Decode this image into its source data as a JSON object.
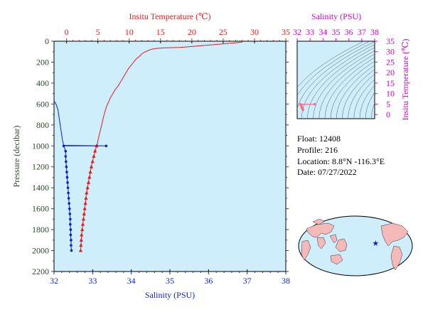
{
  "colors": {
    "temperature": "#e8191c",
    "salinity": "#0c1fd0",
    "ts_axis": "#d000d0",
    "plot_bg": "#cdeefa",
    "axis_left": "#2a4a2a",
    "land": "#f6b9b9"
  },
  "chart_data": [
    {
      "type": "line",
      "top_axis_label": "Insitu Temperature (℃)",
      "bottom_axis_label": "Salinity (PSU)",
      "left_axis_label": "Pressure (decibar)",
      "temp_ticks": [
        "0",
        "5",
        "10",
        "15",
        "20",
        "25",
        "30",
        "35"
      ],
      "sal_ticks": [
        "32",
        "33",
        "34",
        "35",
        "36",
        "37",
        "38"
      ],
      "pressure_ticks": [
        "0",
        "200",
        "400",
        "600",
        "800",
        "1000",
        "1200",
        "1400",
        "1600",
        "1800",
        "2000",
        "2200"
      ],
      "temp_range": [
        -2,
        35
      ],
      "salinity_range": [
        32,
        38
      ],
      "pressure_range": [
        0,
        2200
      ],
      "temperature_profile": {
        "pressure": [
          5,
          8,
          10,
          12,
          15,
          20,
          25,
          30,
          35,
          40,
          45,
          50,
          55,
          60,
          62,
          64,
          66,
          68,
          70,
          72,
          75,
          80,
          85,
          90,
          95,
          100,
          110,
          120,
          135,
          150,
          170,
          200,
          230,
          260,
          300,
          340,
          380,
          430,
          460,
          500,
          540,
          580,
          620,
          660,
          700,
          750,
          800,
          850,
          900,
          950,
          990,
          995,
          1000,
          1050,
          1100,
          1150,
          1200,
          1250,
          1300,
          1350,
          1400,
          1450,
          1500,
          1550,
          1600,
          1650,
          1700,
          1750,
          1800,
          1850,
          1900,
          1950,
          2000
        ],
        "values": [
          28.1,
          28.0,
          27.8,
          27.5,
          27.0,
          26.0,
          25.0,
          24.0,
          23.0,
          22.0,
          21.0,
          20.0,
          19.0,
          18.0,
          16.5,
          15.5,
          15.0,
          14.5,
          14.2,
          14.0,
          13.7,
          13.4,
          13.2,
          13.0,
          12.8,
          12.6,
          12.3,
          12.0,
          11.8,
          11.5,
          11.1,
          10.7,
          10.3,
          9.9,
          9.5,
          9.1,
          8.7,
          8.2,
          7.8,
          7.4,
          7.0,
          6.7,
          6.4,
          6.2,
          6.0,
          5.8,
          5.6,
          5.4,
          5.2,
          5.0,
          4.9,
          4.85,
          4.8,
          4.55,
          4.35,
          4.15,
          3.95,
          3.8,
          3.65,
          3.5,
          3.35,
          3.2,
          3.1,
          3.0,
          2.9,
          2.8,
          2.7,
          2.6,
          2.5,
          2.4,
          2.35,
          2.3,
          2.25
        ],
        "marker_pressure": [
          1000,
          1050,
          1100,
          1150,
          1200,
          1250,
          1300,
          1350,
          1400,
          1450,
          1500,
          1550,
          1600,
          1650,
          1700,
          1750,
          1800,
          1850,
          1900,
          1950,
          2000
        ]
      },
      "salinity_profile": {
        "pressure": [
          570,
          600,
          650,
          700,
          750,
          800,
          850,
          900,
          950,
          995,
          1000,
          1000,
          1000,
          1050,
          1100,
          1150,
          1200,
          1250,
          1300,
          1350,
          1400,
          1450,
          1500,
          1550,
          1600,
          1650,
          1700,
          1750,
          1800,
          1850,
          1900,
          1950,
          2000
        ],
        "values": [
          32.0,
          32.05,
          32.1,
          32.12,
          32.14,
          32.16,
          32.18,
          32.2,
          32.22,
          32.25,
          33.35,
          32.25,
          32.25,
          32.3,
          32.3,
          32.31,
          32.32,
          32.33,
          32.34,
          32.35,
          32.36,
          32.37,
          32.38,
          32.39,
          32.4,
          32.41,
          32.42,
          32.42,
          32.43,
          32.43,
          32.44,
          32.44,
          32.45
        ],
        "markers": [
          [
            1000,
            32.25
          ],
          [
            1000,
            33.35
          ],
          [
            1050,
            32.3
          ],
          [
            1100,
            32.3
          ],
          [
            1150,
            32.31
          ],
          [
            1200,
            32.32
          ],
          [
            1250,
            32.33
          ],
          [
            1300,
            32.34
          ],
          [
            1350,
            32.35
          ],
          [
            1400,
            32.36
          ],
          [
            1450,
            32.37
          ],
          [
            1500,
            32.38
          ],
          [
            1550,
            32.39
          ],
          [
            1600,
            32.4
          ],
          [
            1650,
            32.41
          ],
          [
            1700,
            32.42
          ],
          [
            1750,
            32.42
          ],
          [
            1800,
            32.43
          ],
          [
            1850,
            32.43
          ],
          [
            1900,
            32.44
          ],
          [
            1950,
            32.44
          ],
          [
            2000,
            32.45
          ]
        ]
      }
    },
    {
      "type": "scatter",
      "top_axis_label": "Salinity (PSU)",
      "right_axis_label": "Insitu Temperature (℃)",
      "sal_ticks": [
        "32",
        "33",
        "34",
        "35",
        "36",
        "37",
        "38"
      ],
      "temp_ticks": [
        "0",
        "5",
        "10",
        "15",
        "20",
        "25",
        "30",
        "35"
      ],
      "salinity_range": [
        32,
        38
      ],
      "temp_range": [
        -2,
        35
      ],
      "ts_points": [
        [
          32.45,
          2.25
        ],
        [
          32.4,
          2.9
        ],
        [
          32.35,
          3.5
        ],
        [
          32.3,
          4.35
        ],
        [
          32.25,
          4.8
        ],
        [
          33.35,
          4.9
        ],
        [
          32.25,
          4.9
        ]
      ]
    }
  ],
  "info": {
    "float": "Float:  12408",
    "profile": "Profile:  216",
    "location": "Location:  8.8°N  -116.3°E",
    "date": "Date:  07/27/2022"
  },
  "map": {
    "float_lat": 8.8,
    "float_lon": -116.3
  }
}
